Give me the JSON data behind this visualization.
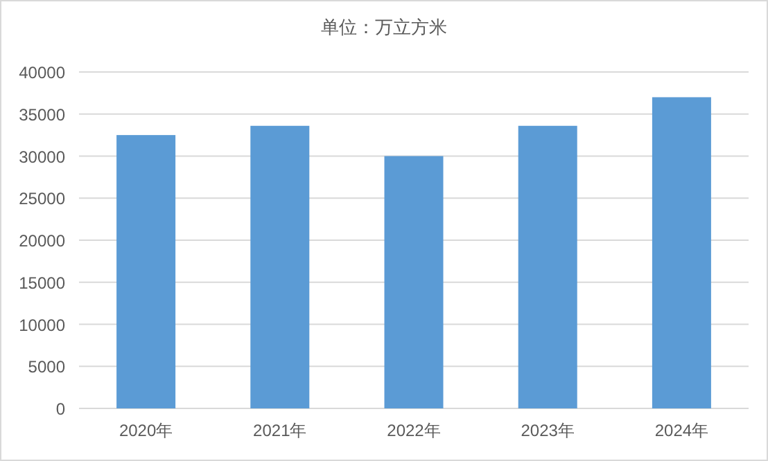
{
  "chart_data": {
    "type": "bar",
    "title": "单位：万立方米",
    "categories": [
      "2020年",
      "2021年",
      "2022年",
      "2023年",
      "2024年"
    ],
    "values": [
      32500,
      33600,
      30000,
      33600,
      37000
    ],
    "color": "#5b9bd5",
    "ylim": [
      0,
      40000
    ],
    "yticks": [
      0,
      5000,
      10000,
      15000,
      20000,
      25000,
      30000,
      35000,
      40000
    ],
    "grid": "y"
  }
}
